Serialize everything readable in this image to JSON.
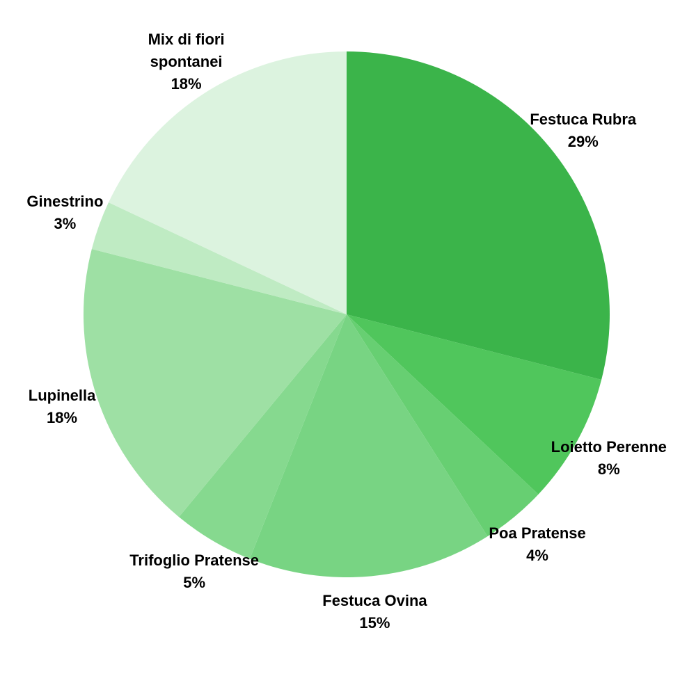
{
  "chart_data": {
    "type": "pie",
    "title": "",
    "slices": [
      {
        "label": "Festuca Rubra",
        "value": 29,
        "display": "29%",
        "color": "#3bb44a"
      },
      {
        "label": "Loietto Perenne",
        "value": 8,
        "display": "8%",
        "color": "#50c65c"
      },
      {
        "label": "Poa Pratense",
        "value": 4,
        "display": "4%",
        "color": "#67cf72"
      },
      {
        "label": "Festuca Ovina",
        "value": 15,
        "display": "15%",
        "color": "#78d483"
      },
      {
        "label": "Trifoglio Pratense",
        "value": 5,
        "display": "5%",
        "color": "#86d98f"
      },
      {
        "label": "Lupinella",
        "value": 18,
        "display": "18%",
        "color": "#9ee0a4"
      },
      {
        "label": "Ginestrino",
        "value": 3,
        "display": "3%",
        "color": "#bfebc3"
      },
      {
        "label": "Mix di fiori\nspontanei",
        "value": 18,
        "display": "18%",
        "color": "#dcf3df"
      }
    ]
  }
}
